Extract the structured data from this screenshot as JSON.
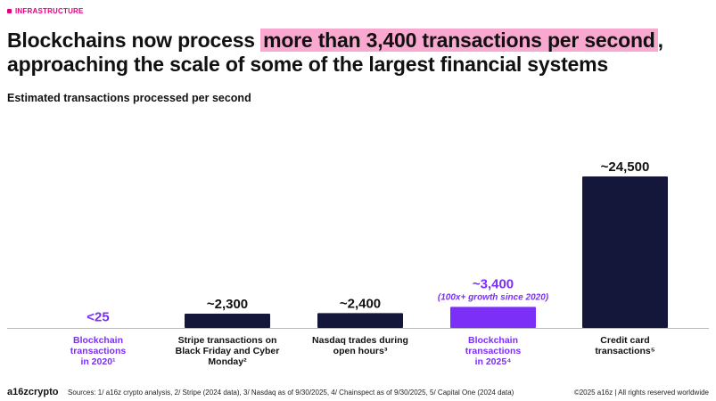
{
  "header": {
    "tag": "INFRASTRUCTURE",
    "title_part1": "Blockchains now process ",
    "title_highlight": "more than 3,400 transactions per second",
    "title_part2": ", approaching the scale of some of the largest financial systems",
    "subtitle": "Estimated transactions processed per second"
  },
  "colors": {
    "accent_pink": "#e6007e",
    "highlight": "#f9a8cf",
    "purple": "#7b2ff7",
    "navy": "#14163a"
  },
  "chart_data": {
    "type": "bar",
    "title": "Estimated transactions processed per second",
    "xlabel": "",
    "ylabel": "",
    "ylim": [
      0,
      24500
    ],
    "grid": false,
    "categories": [
      "Blockchain transactions in 2020¹",
      "Stripe transactions on Black Friday and Cyber Monday²",
      "Nasdaq trades during open hours³",
      "Blockchain transactions in 2025⁴",
      "Credit card transactions⁵"
    ],
    "category_lines": [
      [
        "Blockchain",
        "transactions",
        "in 2020¹"
      ],
      [
        "Stripe transactions on",
        "Black Friday and Cyber",
        "Monday²"
      ],
      [
        "Nasdaq trades during",
        "open hours³"
      ],
      [
        "Blockchain",
        "transactions",
        "in 2025⁴"
      ],
      [
        "Credit card",
        "transactions⁵"
      ]
    ],
    "values": [
      25,
      2300,
      2400,
      3400,
      24500
    ],
    "value_labels": [
      "<25",
      "~2,300",
      "~2,400",
      "~3,400",
      "~24,500"
    ],
    "highlighted": [
      true,
      false,
      false,
      true,
      false
    ],
    "annotations": [
      null,
      null,
      null,
      "(100x+ growth since 2020)",
      null
    ]
  },
  "footer": {
    "logo": "a16zcrypto",
    "sources": "Sources: 1/ a16z crypto analysis, 2/ Stripe (2024 data), 3/ Nasdaq as of 9/30/2025, 4/ Chainspect as of 9/30/2025, 5/ Capital One (2024 data)",
    "copyright": "©2025 a16z | All rights reserved worldwide"
  }
}
